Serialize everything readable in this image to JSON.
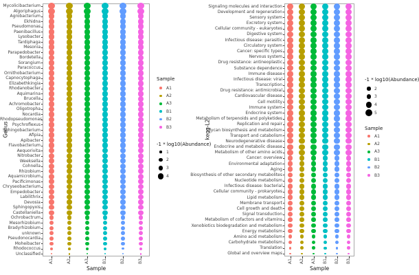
{
  "chart_data": [
    {
      "type": "scatter",
      "subtype": "bubble-dotplot",
      "title": "",
      "xlabel": "Sample",
      "ylabel": "Genus",
      "x_categories": [
        "A1",
        "A2",
        "A3",
        "B1",
        "B2",
        "B3"
      ],
      "legend_color_title": "Sample",
      "legend_size_title": "-1 * log10(Abundance)",
      "legend_size_values": [
        1,
        2,
        3,
        4
      ],
      "legend_order": [
        "color",
        "size"
      ],
      "series": [
        {
          "label": "A1",
          "color": "#F8766D"
        },
        {
          "label": "A2",
          "color": "#B79F00"
        },
        {
          "label": "A3",
          "color": "#00BA38"
        },
        {
          "label": "B1",
          "color": "#00BFC4"
        },
        {
          "label": "B2",
          "color": "#619CFF"
        },
        {
          "label": "B3",
          "color": "#F564E3"
        }
      ],
      "rows": [
        {
          "label": "Mycolicibacterium",
          "v": 4.4
        },
        {
          "label": "Algoriphagus",
          "v": 4.4
        },
        {
          "label": "Agrobacterium",
          "v": 4.35
        },
        {
          "label": "Ekhidna",
          "v": 4.35
        },
        {
          "label": "Pseudomonas",
          "v": 4.3
        },
        {
          "label": "Paenibacillus",
          "v": 4.3
        },
        {
          "label": "Lysobacter",
          "v": 4.3
        },
        {
          "label": "Tardiphaga",
          "v": 4.25
        },
        {
          "label": "Mesonia",
          "v": 4.25
        },
        {
          "label": "Parapedobacter",
          "v": 4.2
        },
        {
          "label": "Bordetella",
          "v": 4.2
        },
        {
          "label": "Sorangium",
          "v": 4.2
        },
        {
          "label": "Paracoccus",
          "v": 4.15
        },
        {
          "label": "Ornithobacterium",
          "v": 4.15
        },
        {
          "label": "Capnocytophaga",
          "v": 4.1
        },
        {
          "label": "Elizabethkingia",
          "v": 4.1
        },
        {
          "label": "Rhodanobacter",
          "v": 4.1
        },
        {
          "label": "Aquimarina",
          "v": 4.05
        },
        {
          "label": "Brucella",
          "v": 4.05
        },
        {
          "label": "Achromobacter",
          "v": 4.0
        },
        {
          "label": "Oligotropha",
          "v": 4.0
        },
        {
          "label": "Nocardia",
          "v": 4.0
        },
        {
          "label": "Rhodopseudomonas",
          "v": 3.95
        },
        {
          "label": "Psychroflexus",
          "v": 3.95
        },
        {
          "label": "Sphingobacterium",
          "v": 3.9
        },
        {
          "label": "Afipia",
          "v": 3.9
        },
        {
          "label": "Apibacter",
          "v": 3.9
        },
        {
          "label": "Flavobacterium",
          "v": 3.85
        },
        {
          "label": "Aequorivita",
          "v": 3.85
        },
        {
          "label": "Nitrobacter",
          "v": 3.8
        },
        {
          "label": "Weeksella",
          "v": 3.8
        },
        {
          "label": "Cohnella",
          "v": 3.75
        },
        {
          "label": "Rhizobium",
          "v": 3.75
        },
        {
          "label": "Aquamicrobium",
          "v": 3.7
        },
        {
          "label": "Pacificimonas",
          "v": 3.7
        },
        {
          "label": "Chryseobacterium",
          "v": 3.65
        },
        {
          "label": "Empedobacter",
          "v": 3.6
        },
        {
          "label": "Labilithrix",
          "v": 3.5
        },
        {
          "label": "Devosia",
          "v": 3.45
        },
        {
          "label": "Sphingopyxis",
          "v": 3.35
        },
        {
          "label": "Castellaniella",
          "v": 3.25
        },
        {
          "label": "Ochrobactrum",
          "v": 3.1
        },
        {
          "label": "Mesorhizobium",
          "v": 2.95
        },
        {
          "label": "Bradyrhizobium",
          "v": 2.8
        },
        {
          "label": "unknown",
          "v": 2.6
        },
        {
          "label": "Pseudonocardia",
          "v": 2.4
        },
        {
          "label": "Moheibacter",
          "v": 2.1
        },
        {
          "label": "Rhodococcus",
          "v": [
            1.5,
            1.3,
            1.6,
            1.4,
            1.1,
            1.5
          ]
        },
        {
          "label": "Unclassified",
          "v": [
            0.3,
            0.5,
            0.4,
            0.3,
            0.4,
            0.5
          ]
        }
      ]
    },
    {
      "type": "scatter",
      "subtype": "bubble-dotplot",
      "title": "",
      "xlabel": "Sample",
      "ylabel": "kegg-L2",
      "x_categories": [
        "A1",
        "A2",
        "A3",
        "B1",
        "B2",
        "B3"
      ],
      "legend_color_title": "Sample",
      "legend_size_title": "-1 * log10(Abundance)",
      "legend_size_values": [
        2,
        3,
        4,
        5
      ],
      "legend_order": [
        "size",
        "color"
      ],
      "series": [
        {
          "label": "A1",
          "color": "#F8766D"
        },
        {
          "label": "A2",
          "color": "#B79F00"
        },
        {
          "label": "A3",
          "color": "#00BA38"
        },
        {
          "label": "B1",
          "color": "#00BFC4"
        },
        {
          "label": "B2",
          "color": "#619CFF"
        },
        {
          "label": "B3",
          "color": "#F564E3"
        }
      ],
      "rows": [
        {
          "label": "Signaling molecules and interaction",
          "v": 4.45
        },
        {
          "label": "Development and regeneration",
          "v": 4.4
        },
        {
          "label": "Sensory system",
          "v": 4.4
        },
        {
          "label": "Excretory system",
          "v": 4.35
        },
        {
          "label": "Cellular community - eukaryotes",
          "v": 4.35
        },
        {
          "label": "Digestive system",
          "v": 4.3
        },
        {
          "label": "Infectious disease: parasitic",
          "v": 4.3
        },
        {
          "label": "Circulatory system",
          "v": 4.25
        },
        {
          "label": "Cancer: specific types",
          "v": 4.25
        },
        {
          "label": "Nervous system",
          "v": 4.2
        },
        {
          "label": "Drug resistance: antineoplastic",
          "v": 4.2
        },
        {
          "label": "Substance dependence",
          "v": 4.15
        },
        {
          "label": "Immune disease",
          "v": 4.15
        },
        {
          "label": "Infectious disease: viral",
          "v": 4.1
        },
        {
          "label": "Transcription",
          "v": 4.1
        },
        {
          "label": "Drug resistance: antimicrobial",
          "v": 4.05
        },
        {
          "label": "Cardiovascular disease",
          "v": 4.05
        },
        {
          "label": "Cell motility",
          "v": 4.0
        },
        {
          "label": "Immune system",
          "v": 4.0
        },
        {
          "label": "Endocrine system",
          "v": 3.95
        },
        {
          "label": "Metabolism of terpenoids and polyketides",
          "v": 3.95
        },
        {
          "label": "Replication and repair",
          "v": 3.9
        },
        {
          "label": "Glycan biosynthesis and metabolism",
          "v": 3.9
        },
        {
          "label": "Transport and catabolism",
          "v": 3.85
        },
        {
          "label": "Neurodegenerative disease",
          "v": 3.85
        },
        {
          "label": "Endocrine and metabolic disease",
          "v": 3.8
        },
        {
          "label": "Metabolism of other amino acids",
          "v": 3.8
        },
        {
          "label": "Cancer: overview",
          "v": 3.75
        },
        {
          "label": "Environmental adaptation",
          "v": 3.7
        },
        {
          "label": "Aging",
          "v": 3.65
        },
        {
          "label": "Biosynthesis of other secondary metabolites",
          "v": 3.6
        },
        {
          "label": "Nucleotide metabolism",
          "v": 3.55
        },
        {
          "label": "Infectious disease: bacterial",
          "v": 3.5
        },
        {
          "label": "Cellular community - prokaryotes",
          "v": 3.45
        },
        {
          "label": "Lipid metabolism",
          "v": 3.4
        },
        {
          "label": "Membrane transport",
          "v": 3.35
        },
        {
          "label": "Cell growth and death",
          "v": 3.25
        },
        {
          "label": "Signal transduction",
          "v": 3.15
        },
        {
          "label": "Metabolism of cofactors and vitamins",
          "v": 3.0
        },
        {
          "label": "Xenobiotics biodegradation and metabolism",
          "v": 2.85
        },
        {
          "label": "Energy metabolism",
          "v": 2.7
        },
        {
          "label": "Amino acid metabolism",
          "v": 2.5
        },
        {
          "label": "Carbohydrate metabolism",
          "v": 2.3
        },
        {
          "label": "Translation",
          "v": [
            1.2,
            1.8,
            1.7,
            1.6,
            1.2,
            1.7
          ]
        },
        {
          "label": "Global and overview maps",
          "v": [
            0.4,
            0.6,
            0.5,
            0.4,
            0.4,
            0.6
          ]
        }
      ]
    }
  ]
}
